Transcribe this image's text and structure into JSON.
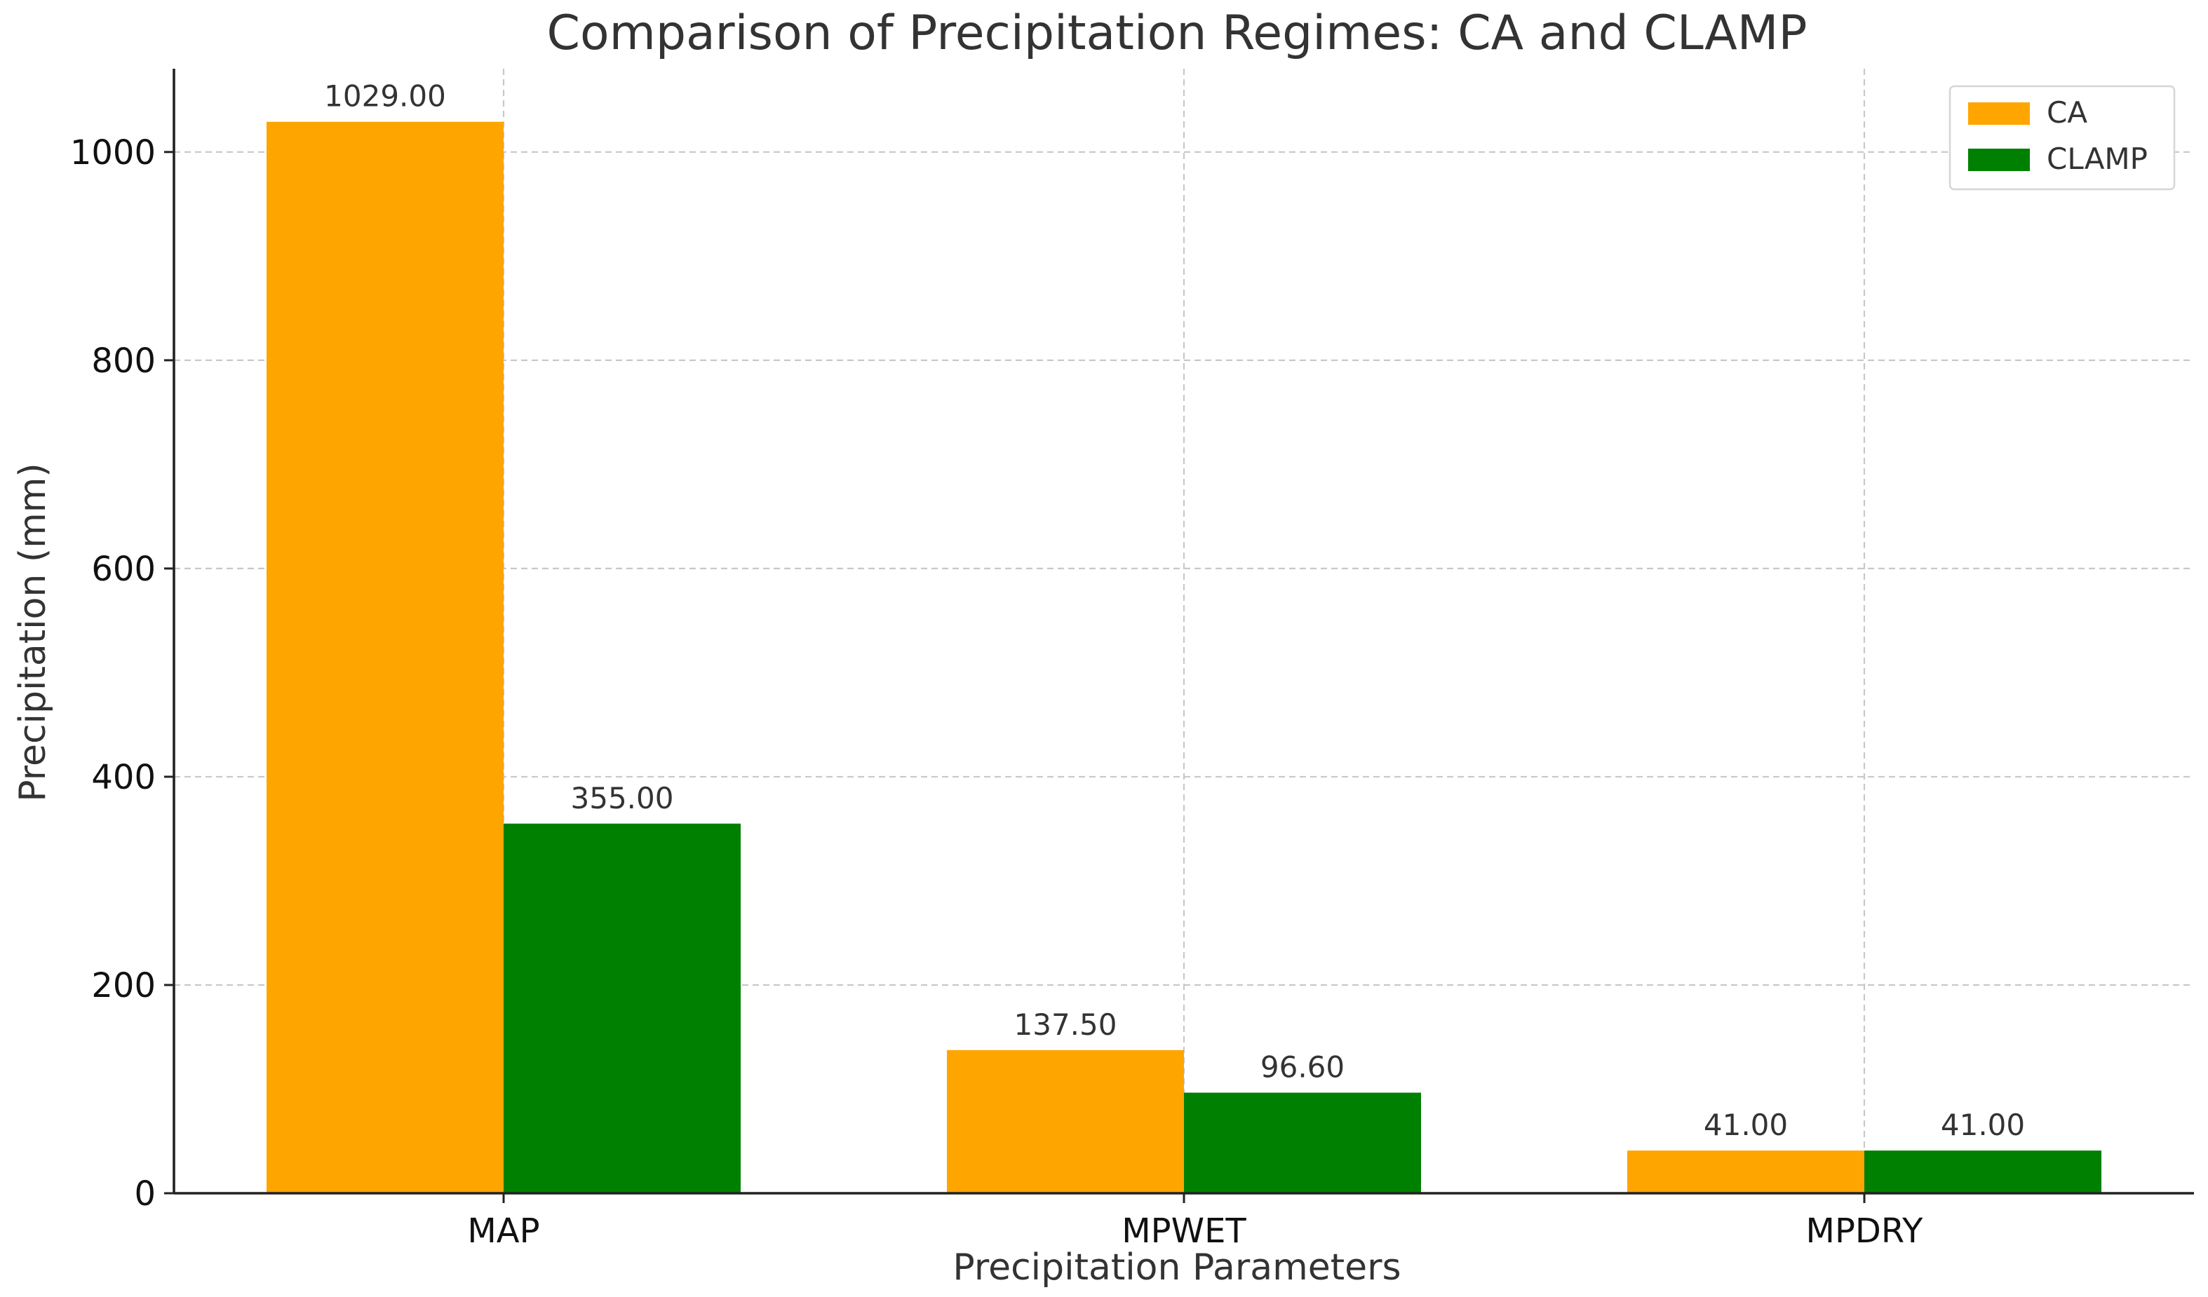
{
  "chart_data": {
    "type": "bar",
    "title": "Comparison of Precipitation Regimes: CA and CLAMP",
    "xlabel": "Precipitation Parameters",
    "ylabel": "Precipitation (mm)",
    "categories": [
      "MAP",
      "MPWET",
      "MPDRY"
    ],
    "series": [
      {
        "name": "CA",
        "color": "#FFA500",
        "values": [
          1029.0,
          137.5,
          41.0
        ],
        "labels": [
          "1029.00",
          "137.50",
          "41.00"
        ]
      },
      {
        "name": "CLAMP",
        "color": "#008000",
        "values": [
          355.0,
          96.6,
          41.0
        ],
        "labels": [
          "355.00",
          "96.60",
          "41.00"
        ]
      }
    ],
    "ylim": [
      0,
      1080
    ],
    "yticks": [
      0,
      200,
      400,
      600,
      800,
      1000
    ],
    "ytick_labels": [
      "0",
      "200",
      "400",
      "600",
      "800",
      "1000"
    ],
    "grid": true,
    "legend_position": "top-right"
  }
}
